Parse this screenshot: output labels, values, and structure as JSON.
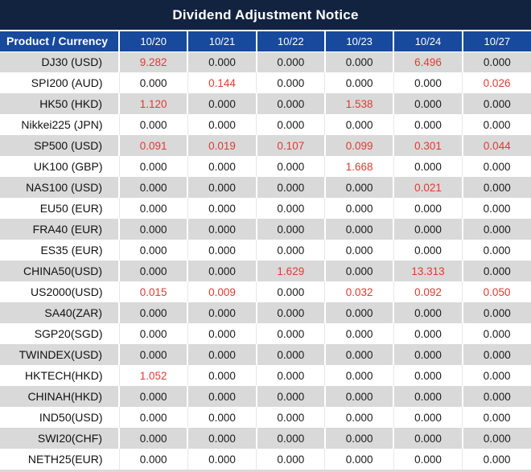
{
  "title": "Dividend Adjustment Notice",
  "colors": {
    "title_bg": "#122340",
    "header_bg": "#17499c",
    "stripe_gray": "#d9d9d9",
    "row_white": "#ffffff",
    "value_red": "#e03a30",
    "value_black": "#1a1a1a"
  },
  "table": {
    "product_header": "Product / Currency",
    "date_headers": [
      "10/20",
      "10/21",
      "10/22",
      "10/23",
      "10/24",
      "10/27"
    ],
    "rows": [
      {
        "product": "DJ30 (USD)",
        "values": [
          "9.282",
          "0.000",
          "0.000",
          "0.000",
          "6.496",
          "0.000"
        ],
        "red": [
          0,
          4
        ]
      },
      {
        "product": "SPI200 (AUD)",
        "values": [
          "0.000",
          "0.144",
          "0.000",
          "0.000",
          "0.000",
          "0.026"
        ],
        "red": [
          1,
          5
        ]
      },
      {
        "product": "HK50 (HKD)",
        "values": [
          "1.120",
          "0.000",
          "0.000",
          "1.538",
          "0.000",
          "0.000"
        ],
        "red": [
          0,
          3
        ]
      },
      {
        "product": "Nikkei225 (JPN)",
        "values": [
          "0.000",
          "0.000",
          "0.000",
          "0.000",
          "0.000",
          "0.000"
        ],
        "red": []
      },
      {
        "product": "SP500 (USD)",
        "values": [
          "0.091",
          "0.019",
          "0.107",
          "0.099",
          "0.301",
          "0.044"
        ],
        "red": [
          0,
          1,
          2,
          3,
          4,
          5
        ]
      },
      {
        "product": "UK100 (GBP)",
        "values": [
          "0.000",
          "0.000",
          "0.000",
          "1.668",
          "0.000",
          "0.000"
        ],
        "red": [
          3
        ]
      },
      {
        "product": "NAS100 (USD)",
        "values": [
          "0.000",
          "0.000",
          "0.000",
          "0.000",
          "0.021",
          "0.000"
        ],
        "red": [
          4
        ]
      },
      {
        "product": "EU50 (EUR)",
        "values": [
          "0.000",
          "0.000",
          "0.000",
          "0.000",
          "0.000",
          "0.000"
        ],
        "red": []
      },
      {
        "product": "FRA40 (EUR)",
        "values": [
          "0.000",
          "0.000",
          "0.000",
          "0.000",
          "0.000",
          "0.000"
        ],
        "red": []
      },
      {
        "product": "ES35 (EUR)",
        "values": [
          "0.000",
          "0.000",
          "0.000",
          "0.000",
          "0.000",
          "0.000"
        ],
        "red": []
      },
      {
        "product": "CHINA50(USD)",
        "values": [
          "0.000",
          "0.000",
          "1.629",
          "0.000",
          "13.313",
          "0.000"
        ],
        "red": [
          2,
          4
        ]
      },
      {
        "product": "US2000(USD)",
        "values": [
          "0.015",
          "0.009",
          "0.000",
          "0.032",
          "0.092",
          "0.050"
        ],
        "red": [
          0,
          1,
          3,
          4,
          5
        ]
      },
      {
        "product": "SA40(ZAR)",
        "values": [
          "0.000",
          "0.000",
          "0.000",
          "0.000",
          "0.000",
          "0.000"
        ],
        "red": []
      },
      {
        "product": "SGP20(SGD)",
        "values": [
          "0.000",
          "0.000",
          "0.000",
          "0.000",
          "0.000",
          "0.000"
        ],
        "red": []
      },
      {
        "product": "TWINDEX(USD)",
        "values": [
          "0.000",
          "0.000",
          "0.000",
          "0.000",
          "0.000",
          "0.000"
        ],
        "red": []
      },
      {
        "product": "HKTECH(HKD)",
        "values": [
          "1.052",
          "0.000",
          "0.000",
          "0.000",
          "0.000",
          "0.000"
        ],
        "red": [
          0
        ]
      },
      {
        "product": "CHINAH(HKD)",
        "values": [
          "0.000",
          "0.000",
          "0.000",
          "0.000",
          "0.000",
          "0.000"
        ],
        "red": []
      },
      {
        "product": "IND50(USD)",
        "values": [
          "0.000",
          "0.000",
          "0.000",
          "0.000",
          "0.000",
          "0.000"
        ],
        "red": []
      },
      {
        "product": "SWI20(CHF)",
        "values": [
          "0.000",
          "0.000",
          "0.000",
          "0.000",
          "0.000",
          "0.000"
        ],
        "red": []
      },
      {
        "product": "NETH25(EUR)",
        "values": [
          "0.000",
          "0.000",
          "0.000",
          "0.000",
          "0.000",
          "0.000"
        ],
        "red": []
      }
    ]
  }
}
